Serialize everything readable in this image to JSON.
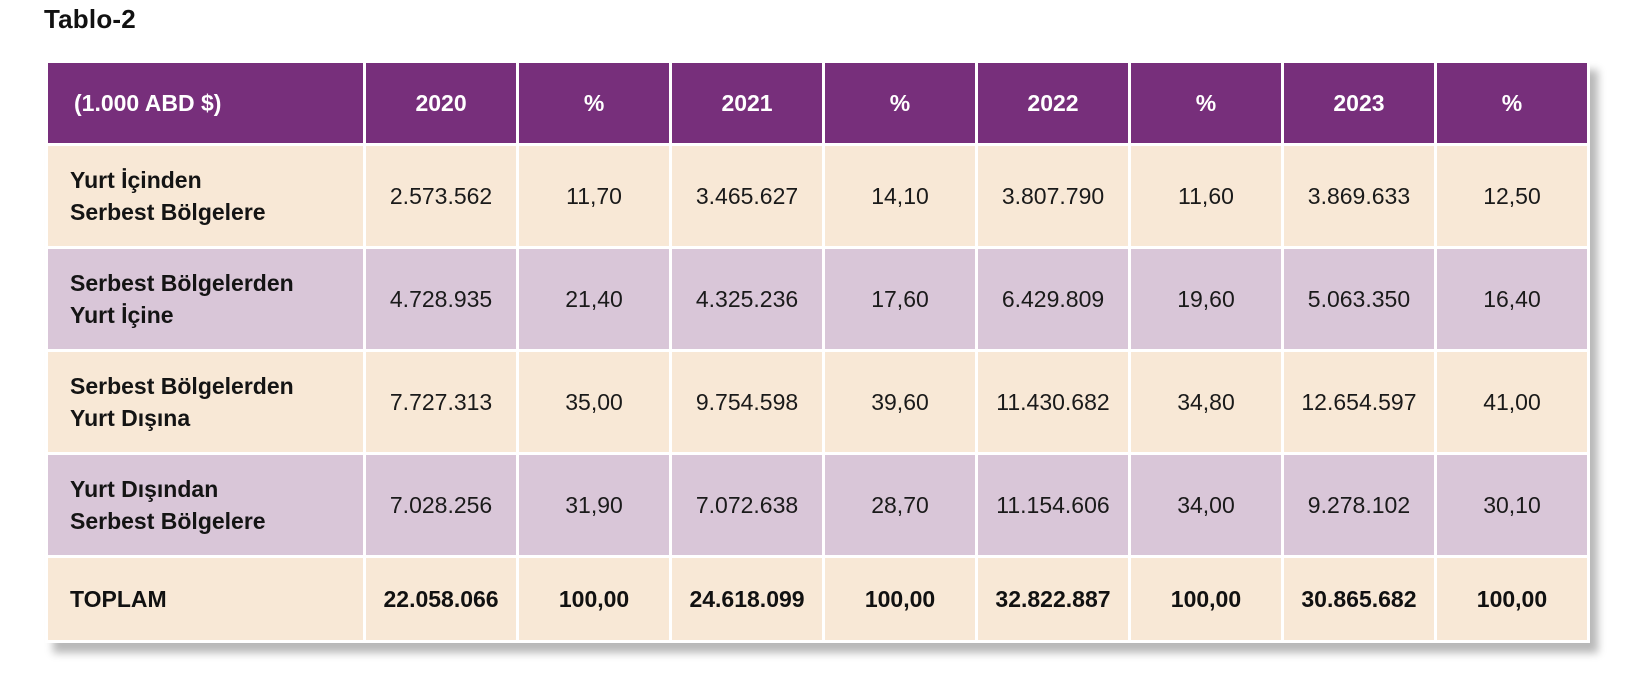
{
  "title": "Tablo-2",
  "table": {
    "headers": [
      "(1.000 ABD $)",
      "2020",
      "%",
      "2021",
      "%",
      "2022",
      "%",
      "2023",
      "%"
    ],
    "rows": [
      {
        "label_line1": "Yurt İçinden",
        "label_line2": "Serbest Bölgelere",
        "cells": [
          "2.573.562",
          "11,70",
          "3.465.627",
          "14,10",
          "3.807.790",
          "11,60",
          "3.869.633",
          "12,50"
        ]
      },
      {
        "label_line1": "Serbest Bölgelerden",
        "label_line2": "Yurt İçine",
        "cells": [
          "4.728.935",
          "21,40",
          "4.325.236",
          "17,60",
          "6.429.809",
          "19,60",
          "5.063.350",
          "16,40"
        ]
      },
      {
        "label_line1": "Serbest Bölgelerden",
        "label_line2": "Yurt Dışına",
        "cells": [
          "7.727.313",
          "35,00",
          "9.754.598",
          "39,60",
          "11.430.682",
          "34,80",
          "12.654.597",
          "41,00"
        ]
      },
      {
        "label_line1": "Yurt Dışından",
        "label_line2": "Serbest Bölgelere",
        "cells": [
          "7.028.256",
          "31,90",
          "7.072.638",
          "28,70",
          "11.154.606",
          "34,00",
          "9.278.102",
          "30,10"
        ]
      }
    ],
    "total": {
      "label": "TOPLAM",
      "cells": [
        "22.058.066",
        "100,00",
        "24.618.099",
        "100,00",
        "32.822.887",
        "100,00",
        "30.865.682",
        "100,00"
      ]
    }
  },
  "colors": {
    "header_bg": "#772f7b",
    "row_cream": "#f8e8d6",
    "row_lilac": "#d9c6d8",
    "border": "#ffffff"
  }
}
